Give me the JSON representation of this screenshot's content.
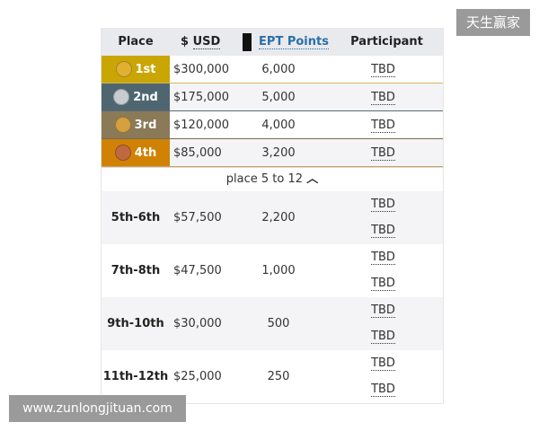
{
  "header": {
    "place": "Place",
    "usd_prefix": "$",
    "usd": "USD",
    "points": "EPT Points",
    "participant": "Participant"
  },
  "top_places": [
    {
      "place": "1st",
      "usd": "$300,000",
      "points": "6,000",
      "participant": "TBD",
      "color": "#c9a603",
      "medal": "#e0b030",
      "line": "#d6b45a"
    },
    {
      "place": "2nd",
      "usd": "$175,000",
      "points": "5,000",
      "participant": "TBD",
      "color": "#4f6670",
      "medal": "#c8ccd0",
      "line": "#5a6a72"
    },
    {
      "place": "3rd",
      "usd": "$120,000",
      "points": "4,000",
      "participant": "TBD",
      "color": "#8a7a58",
      "medal": "#d4a040",
      "line": "#7a6a50"
    },
    {
      "place": "4th",
      "usd": "$85,000",
      "points": "3,200",
      "participant": "TBD",
      "color": "#d08204",
      "medal": "#c06840",
      "line": "#c9a060"
    }
  ],
  "more_label": "place 5 to 12",
  "groups": [
    {
      "place": "5th-6th",
      "usd": "$57,500",
      "points": "2,200",
      "participants": [
        "TBD",
        "TBD"
      ]
    },
    {
      "place": "7th-8th",
      "usd": "$47,500",
      "points": "1,000",
      "participants": [
        "TBD",
        "TBD"
      ]
    },
    {
      "place": "9th-10th",
      "usd": "$30,000",
      "points": "500",
      "participants": [
        "TBD",
        "TBD"
      ]
    },
    {
      "place": "11th-12th",
      "usd": "$25,000",
      "points": "250",
      "participants": [
        "TBD",
        "TBD"
      ]
    }
  ],
  "watermark_top": "天生赢家",
  "watermark_bottom": "www.zunlongjituan.com"
}
